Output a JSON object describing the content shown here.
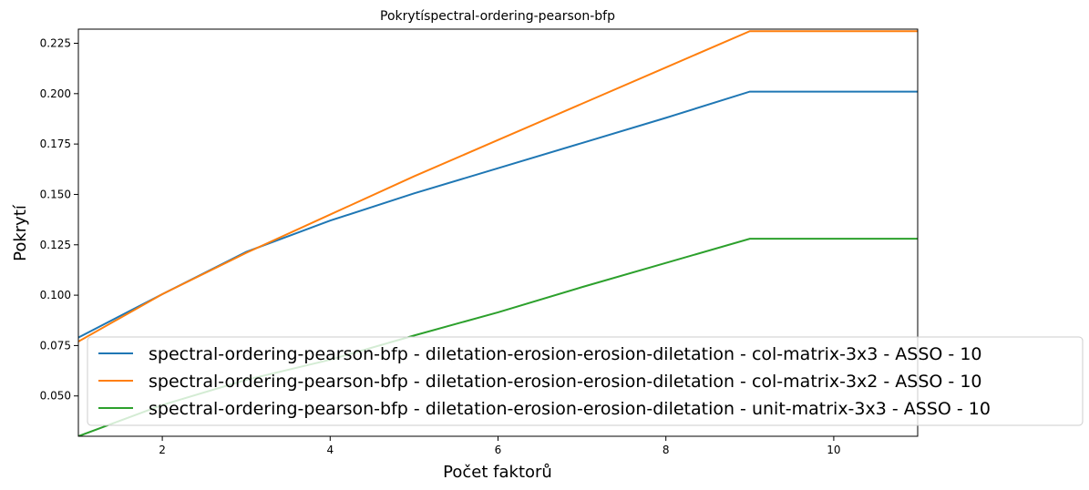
{
  "chart_data": {
    "type": "line",
    "title": "Pokrytíspectral-ordering-pearson-bfp",
    "xlabel": "Počet faktorů",
    "ylabel": "Pokrytí",
    "xlim": [
      1,
      11
    ],
    "ylim": [
      0.03,
      0.232
    ],
    "xticks": [
      2,
      4,
      6,
      8,
      10
    ],
    "yticks": [
      0.05,
      0.075,
      0.1,
      0.125,
      0.15,
      0.175,
      0.2,
      0.225
    ],
    "ytick_labels": [
      "0.050",
      "0.075",
      "0.100",
      "0.125",
      "0.150",
      "0.175",
      "0.200",
      "0.225"
    ],
    "grid": false,
    "legend_position": "lower-right",
    "series": [
      {
        "name": "spectral-ordering-pearson-bfp - diletation-erosion-erosion-diletation - col-matrix-3x3 - ASSO - 10",
        "color": "#1f77b4",
        "x": [
          1,
          2,
          3,
          4,
          5,
          6,
          7,
          8,
          9,
          10,
          11
        ],
        "y": [
          0.079,
          0.1005,
          0.1215,
          0.137,
          0.1505,
          0.163,
          0.1755,
          0.188,
          0.201,
          0.201,
          0.201
        ]
      },
      {
        "name": "spectral-ordering-pearson-bfp - diletation-erosion-erosion-diletation - col-matrix-3x2 - ASSO - 10",
        "color": "#ff7f0e",
        "x": [
          1,
          2,
          3,
          4,
          5,
          6,
          7,
          8,
          9,
          10,
          11
        ],
        "y": [
          0.077,
          0.1005,
          0.121,
          0.14,
          0.159,
          0.177,
          0.195,
          0.213,
          0.231,
          0.231,
          0.231
        ]
      },
      {
        "name": "spectral-ordering-pearson-bfp - diletation-erosion-erosion-diletation - unit-matrix-3x3 - ASSO - 10",
        "color": "#2ca02c",
        "x": [
          1,
          2,
          3,
          4,
          5,
          6,
          7,
          8,
          9,
          10,
          11
        ],
        "y": [
          0.03,
          0.0455,
          0.058,
          0.068,
          0.08,
          0.0915,
          0.104,
          0.116,
          0.128,
          0.128,
          0.128
        ]
      }
    ]
  }
}
